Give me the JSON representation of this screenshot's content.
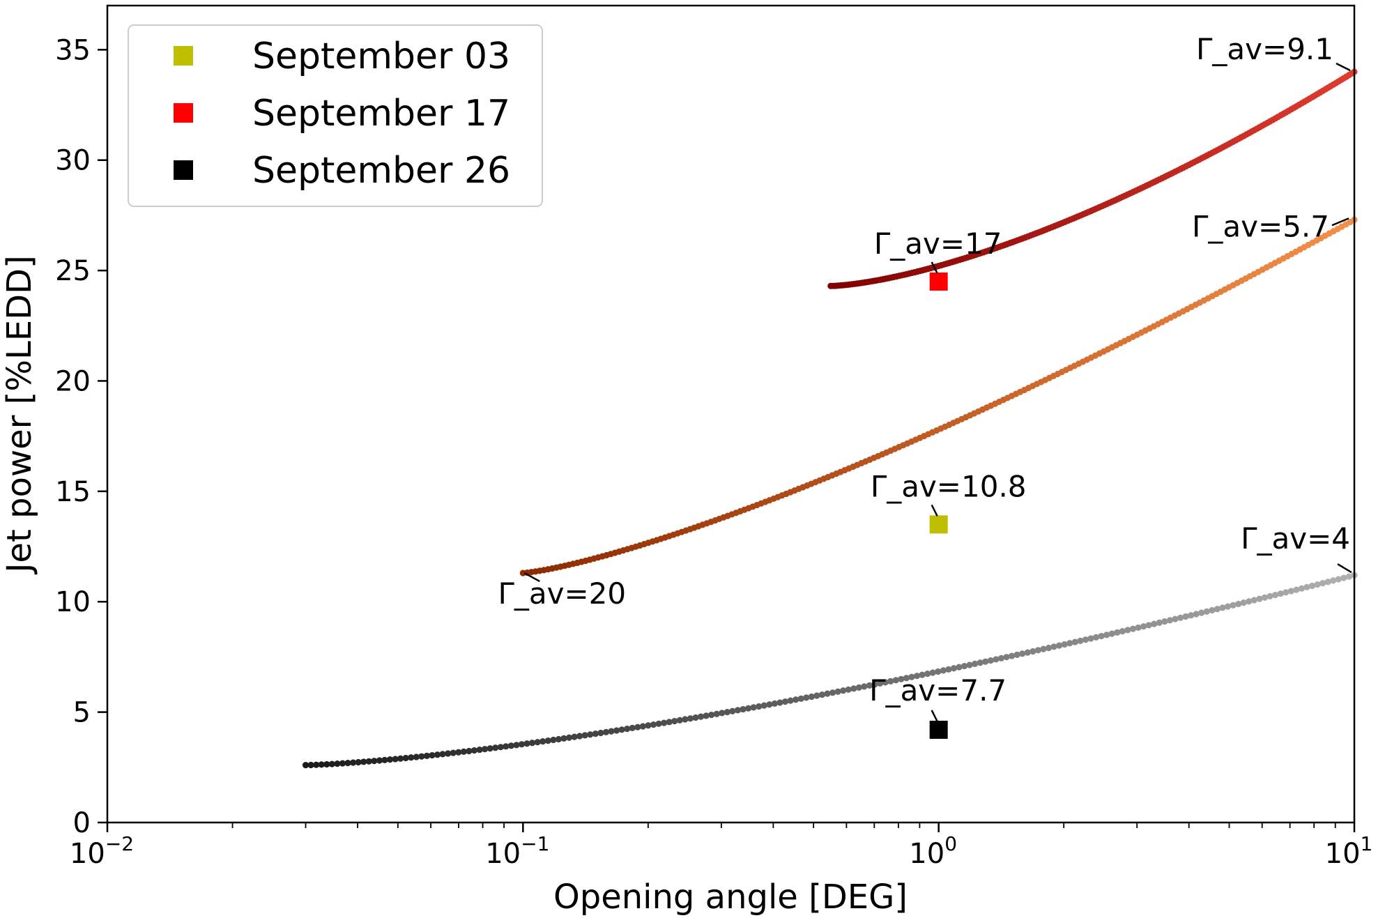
{
  "chart_data": {
    "type": "scatter",
    "xscale": "log",
    "xlabel": "Opening angle [DEG]",
    "ylabel": "Jet power [%LEDD]",
    "xlim": [
      0.01,
      10
    ],
    "ylim": [
      0,
      37
    ],
    "x_ticks": [
      {
        "value": 0.01,
        "base": "10",
        "exp": "−2"
      },
      {
        "value": 0.1,
        "base": "10",
        "exp": "−1"
      },
      {
        "value": 1,
        "base": "10",
        "exp": "0"
      },
      {
        "value": 10,
        "base": "10",
        "exp": "1"
      }
    ],
    "y_ticks": [
      0,
      5,
      10,
      15,
      20,
      25,
      30,
      35
    ],
    "grid": false,
    "legend": {
      "position": "top-left",
      "entries": [
        {
          "label": "September 03",
          "color": "#bfbf00"
        },
        {
          "label": "September 17",
          "color": "#ff0000"
        },
        {
          "label": "September 26",
          "color": "#000000"
        }
      ]
    },
    "series": [
      {
        "x_range": [
          0.55,
          10
        ],
        "y_start": 24.3,
        "y_end": 34.0,
        "curve_power": 1.5,
        "n_points": 200,
        "color_start": "#7f0000",
        "color_end": "#e03c30",
        "marker": {
          "x": 1,
          "y": 24.5,
          "color": "#ff0000"
        },
        "annotations": [
          {
            "text": "Γ_av=17",
            "x": 1,
            "y": 24.5
          },
          {
            "text": "Γ_av=9.1",
            "x": 10,
            "y": 34.0
          }
        ]
      },
      {
        "x_range": [
          0.1,
          10
        ],
        "y_start": 11.3,
        "y_end": 27.3,
        "curve_power": 1.3,
        "n_points": 200,
        "color_start": "#8c2a00",
        "color_end": "#f5904a",
        "marker": {
          "x": 1,
          "y": 13.5,
          "color": "#bfbf00"
        },
        "annotations": [
          {
            "text": "Γ_av=10.8",
            "x": 1,
            "y": 13.5
          },
          {
            "text": "Γ_av=20",
            "x": 0.1,
            "y": 11.3
          },
          {
            "text": "Γ_av=5.7",
            "x": 10,
            "y": 27.3
          }
        ]
      },
      {
        "x_range": [
          0.03,
          10
        ],
        "y_start": 2.6,
        "y_end": 11.2,
        "curve_power": 1.4,
        "n_points": 200,
        "color_start": "#1a1a1a",
        "color_end": "#b0b0b0",
        "marker": {
          "x": 1,
          "y": 4.2,
          "color": "#000000"
        },
        "annotations": [
          {
            "text": "Γ_av=7.7",
            "x": 1,
            "y": 4.2
          },
          {
            "text": "Γ_av=4",
            "x": 10,
            "y": 11.2
          }
        ]
      }
    ]
  }
}
